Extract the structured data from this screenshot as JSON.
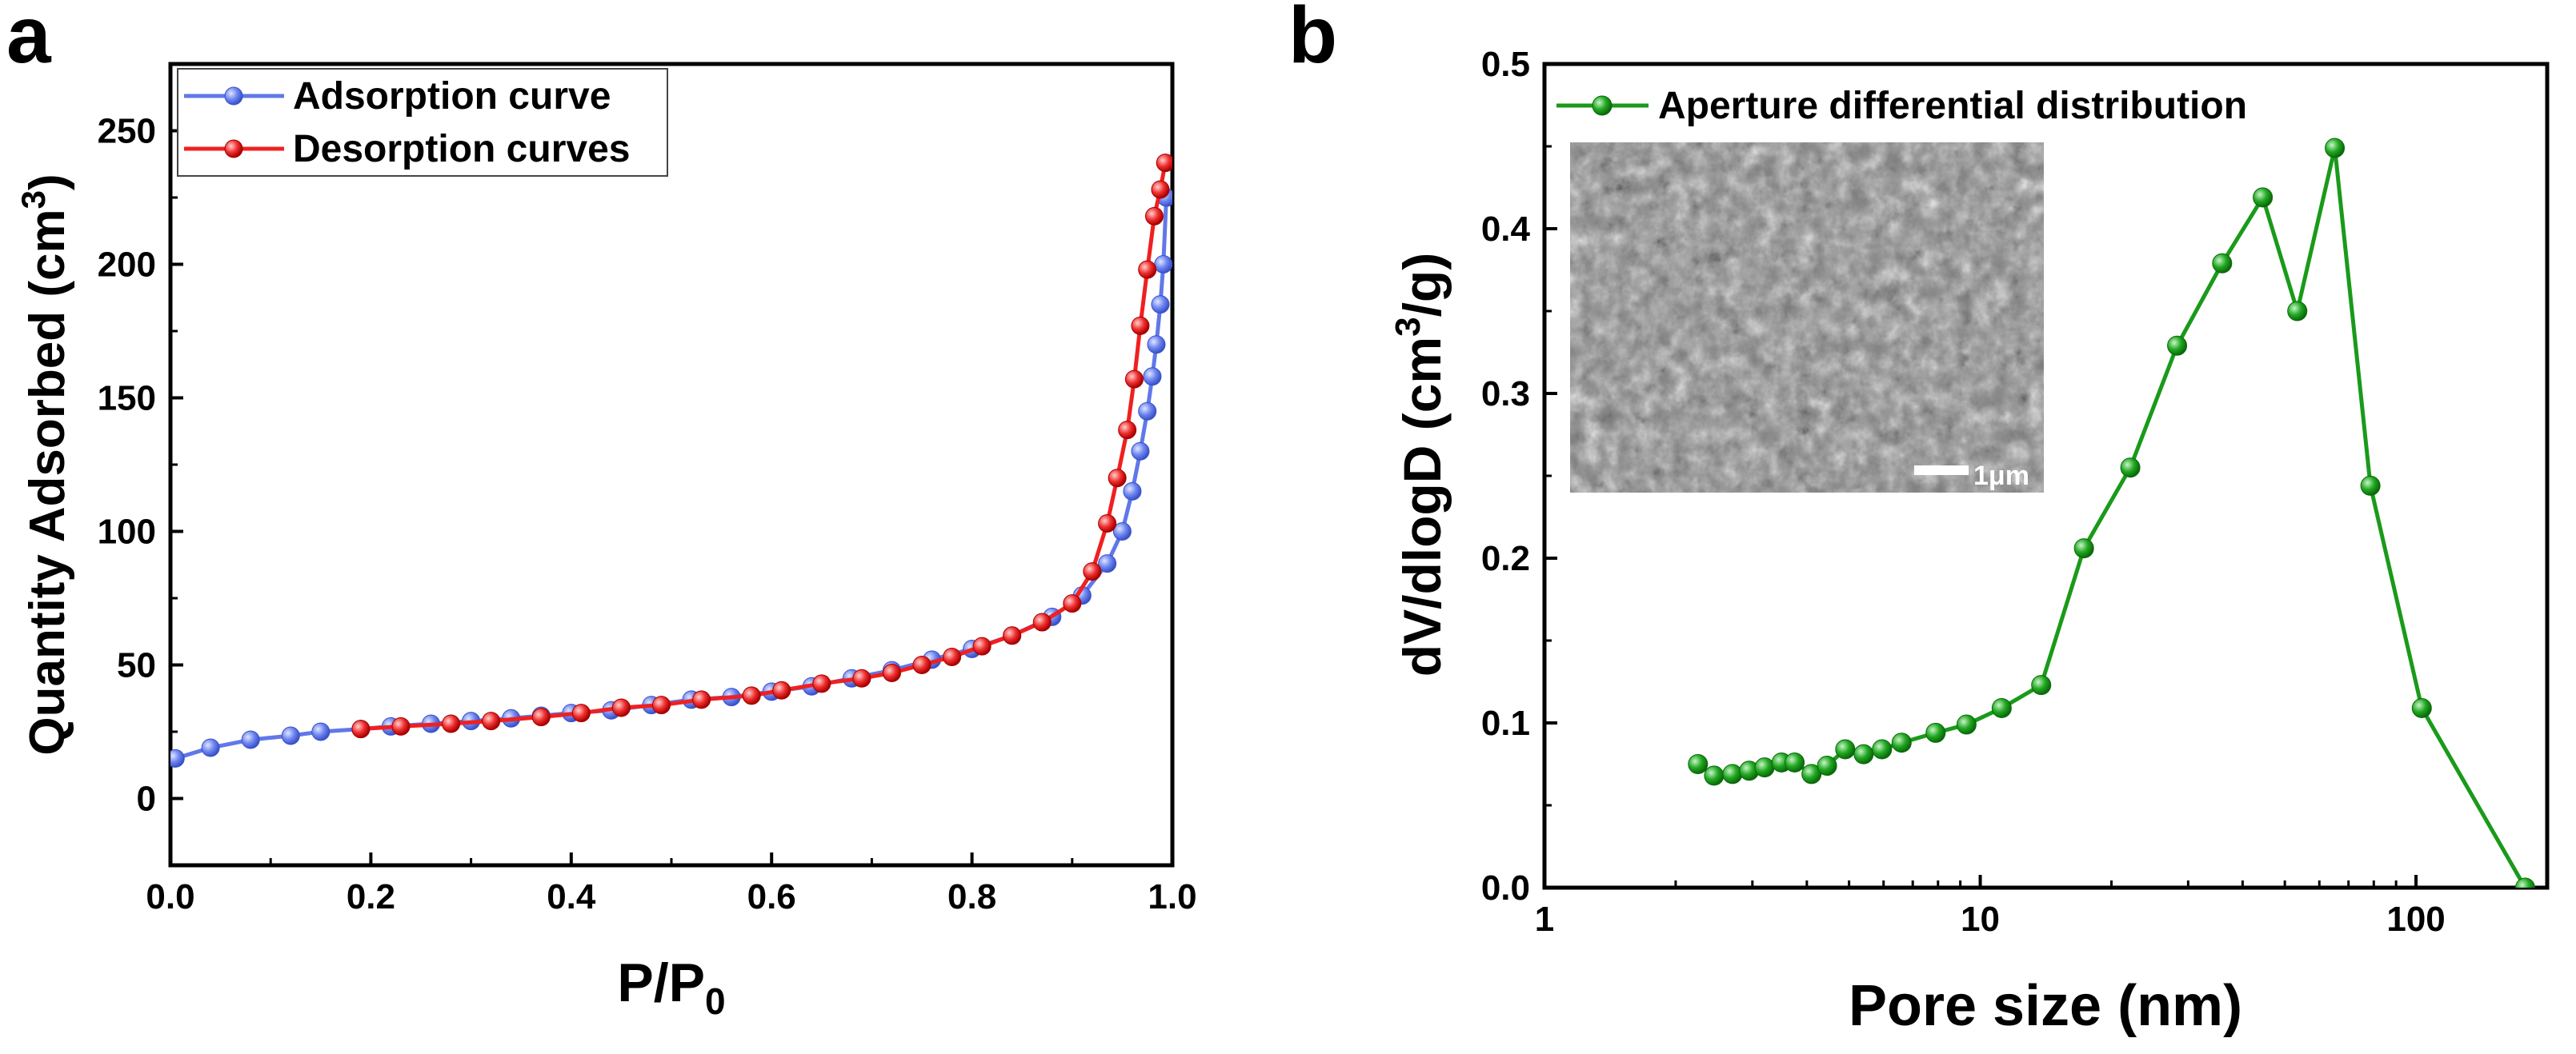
{
  "chart_data": [
    {
      "panel_label": "a",
      "type": "line",
      "title": "",
      "xlabel_main": "P/P",
      "xlabel_sub": "0",
      "ylabel_main": "Quantity Adsorbed (cm",
      "ylabel_sup": "3",
      "ylabel_close": ")",
      "xlim": [
        0,
        1.0
      ],
      "ylim": [
        -25,
        275
      ],
      "xticks": [
        "0.0",
        "0.2",
        "0.4",
        "0.6",
        "0.8",
        "1.0"
      ],
      "xtick_values": [
        0,
        0.2,
        0.4,
        0.6,
        0.8,
        1.0
      ],
      "yticks": [
        "0",
        "50",
        "100",
        "150",
        "200",
        "250"
      ],
      "ytick_values": [
        0,
        50,
        100,
        150,
        200,
        250
      ],
      "legend_position": "top-left",
      "series": [
        {
          "name": "Adsorption curve",
          "color": "#6078e8",
          "x": [
            0.005,
            0.04,
            0.08,
            0.12,
            0.15,
            0.19,
            0.22,
            0.26,
            0.3,
            0.34,
            0.37,
            0.4,
            0.44,
            0.48,
            0.52,
            0.56,
            0.6,
            0.64,
            0.68,
            0.72,
            0.76,
            0.8,
            0.84,
            0.88,
            0.91,
            0.935,
            0.95,
            0.96,
            0.968,
            0.975,
            0.98,
            0.984,
            0.988,
            0.991,
            0.994
          ],
          "y": [
            15,
            19,
            22,
            23.5,
            25,
            26,
            27,
            28,
            29,
            30,
            31,
            32,
            33,
            35,
            37,
            38,
            40,
            42,
            45,
            48,
            52,
            56,
            61,
            68,
            76,
            88,
            100,
            115,
            130,
            145,
            158,
            170,
            185,
            200,
            225
          ]
        },
        {
          "name": "Desorption curves",
          "color": "#f02020",
          "x": [
            0.19,
            0.23,
            0.28,
            0.32,
            0.37,
            0.41,
            0.45,
            0.49,
            0.53,
            0.58,
            0.61,
            0.65,
            0.69,
            0.72,
            0.75,
            0.78,
            0.81,
            0.84,
            0.87,
            0.9,
            0.92,
            0.935,
            0.945,
            0.955,
            0.962,
            0.968,
            0.975,
            0.982,
            0.988,
            0.993
          ],
          "y": [
            26,
            27,
            28,
            29,
            30.5,
            32,
            34,
            35,
            37,
            38.5,
            40.5,
            43,
            45,
            47,
            50,
            53,
            57,
            61,
            66,
            73,
            85,
            103,
            120,
            138,
            157,
            177,
            198,
            218,
            228,
            238
          ]
        }
      ]
    },
    {
      "panel_label": "b",
      "type": "line",
      "title": "",
      "xlabel": "Pore size (nm)",
      "ylabel_main": "dV/dlogD (cm",
      "ylabel_sup": "3",
      "ylabel_close": "/g)",
      "xscale": "log",
      "xlim": [
        1,
        200
      ],
      "ylim": [
        0,
        0.5
      ],
      "xticks": [
        "1",
        "10",
        "100"
      ],
      "xtick_values": [
        1,
        10,
        100
      ],
      "yticks": [
        "0.0",
        "0.1",
        "0.2",
        "0.3",
        "0.4",
        "0.5"
      ],
      "ytick_values": [
        0,
        0.1,
        0.2,
        0.3,
        0.4,
        0.5
      ],
      "legend_position": "top-left",
      "inset": {
        "description_label": "SEM image",
        "scale_bar_label": "1μm"
      },
      "series": [
        {
          "name": "Aperture differential distribution",
          "color": "#1a9a1a",
          "x": [
            2.25,
            2.45,
            2.7,
            2.95,
            3.2,
            3.5,
            3.75,
            4.1,
            4.45,
            4.9,
            5.4,
            5.95,
            6.6,
            7.9,
            9.3,
            11.2,
            13.8,
            17.3,
            22.1,
            28.3,
            35.9,
            44.5,
            53.4,
            65.1,
            78.6,
            103.1,
            178.0
          ],
          "y": [
            0.075,
            0.068,
            0.069,
            0.071,
            0.073,
            0.076,
            0.076,
            0.069,
            0.074,
            0.084,
            0.081,
            0.084,
            0.088,
            0.094,
            0.099,
            0.109,
            0.123,
            0.206,
            0.255,
            0.329,
            0.379,
            0.419,
            0.35,
            0.449,
            0.244,
            0.109,
            0.0
          ]
        }
      ]
    }
  ]
}
